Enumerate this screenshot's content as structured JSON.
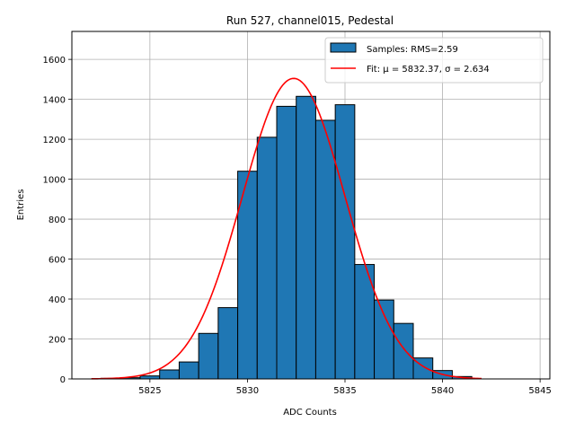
{
  "chart_data": {
    "type": "bar",
    "title": "Run 527, channel015, Pedestal",
    "xlabel": "ADC Counts",
    "ylabel": "Entries",
    "xlim": [
      5821,
      5845.5
    ],
    "ylim": [
      0,
      1740
    ],
    "x_ticks": [
      5825,
      5830,
      5835,
      5840,
      5845
    ],
    "y_ticks": [
      0,
      200,
      400,
      600,
      800,
      1000,
      1200,
      1400,
      1600
    ],
    "grid": true,
    "legend_position": "top-right",
    "bin_width": 1,
    "bins": [
      {
        "x": 5823,
        "y": 3
      },
      {
        "x": 5824,
        "y": 6
      },
      {
        "x": 5825,
        "y": 15
      },
      {
        "x": 5826,
        "y": 45
      },
      {
        "x": 5827,
        "y": 85
      },
      {
        "x": 5828,
        "y": 228
      },
      {
        "x": 5829,
        "y": 357
      },
      {
        "x": 5830,
        "y": 1040
      },
      {
        "x": 5831,
        "y": 1210
      },
      {
        "x": 5832,
        "y": 1365
      },
      {
        "x": 5833,
        "y": 1415
      },
      {
        "x": 5834,
        "y": 1295
      },
      {
        "x": 5835,
        "y": 1373
      },
      {
        "x": 5836,
        "y": 573
      },
      {
        "x": 5837,
        "y": 395
      },
      {
        "x": 5838,
        "y": 278
      },
      {
        "x": 5839,
        "y": 105
      },
      {
        "x": 5840,
        "y": 42
      },
      {
        "x": 5841,
        "y": 12
      }
    ],
    "fit": {
      "mu": 5832.37,
      "sigma": 2.634,
      "amplitude": 1505,
      "x_range": [
        5822,
        5842
      ]
    },
    "series": [
      {
        "name": "Samples: RMS=2.59",
        "kind": "histogram",
        "color": "#1f77b4"
      },
      {
        "name": "Fit: μ = 5832.37, σ = 2.634",
        "kind": "line",
        "color": "#ff0000"
      }
    ]
  }
}
